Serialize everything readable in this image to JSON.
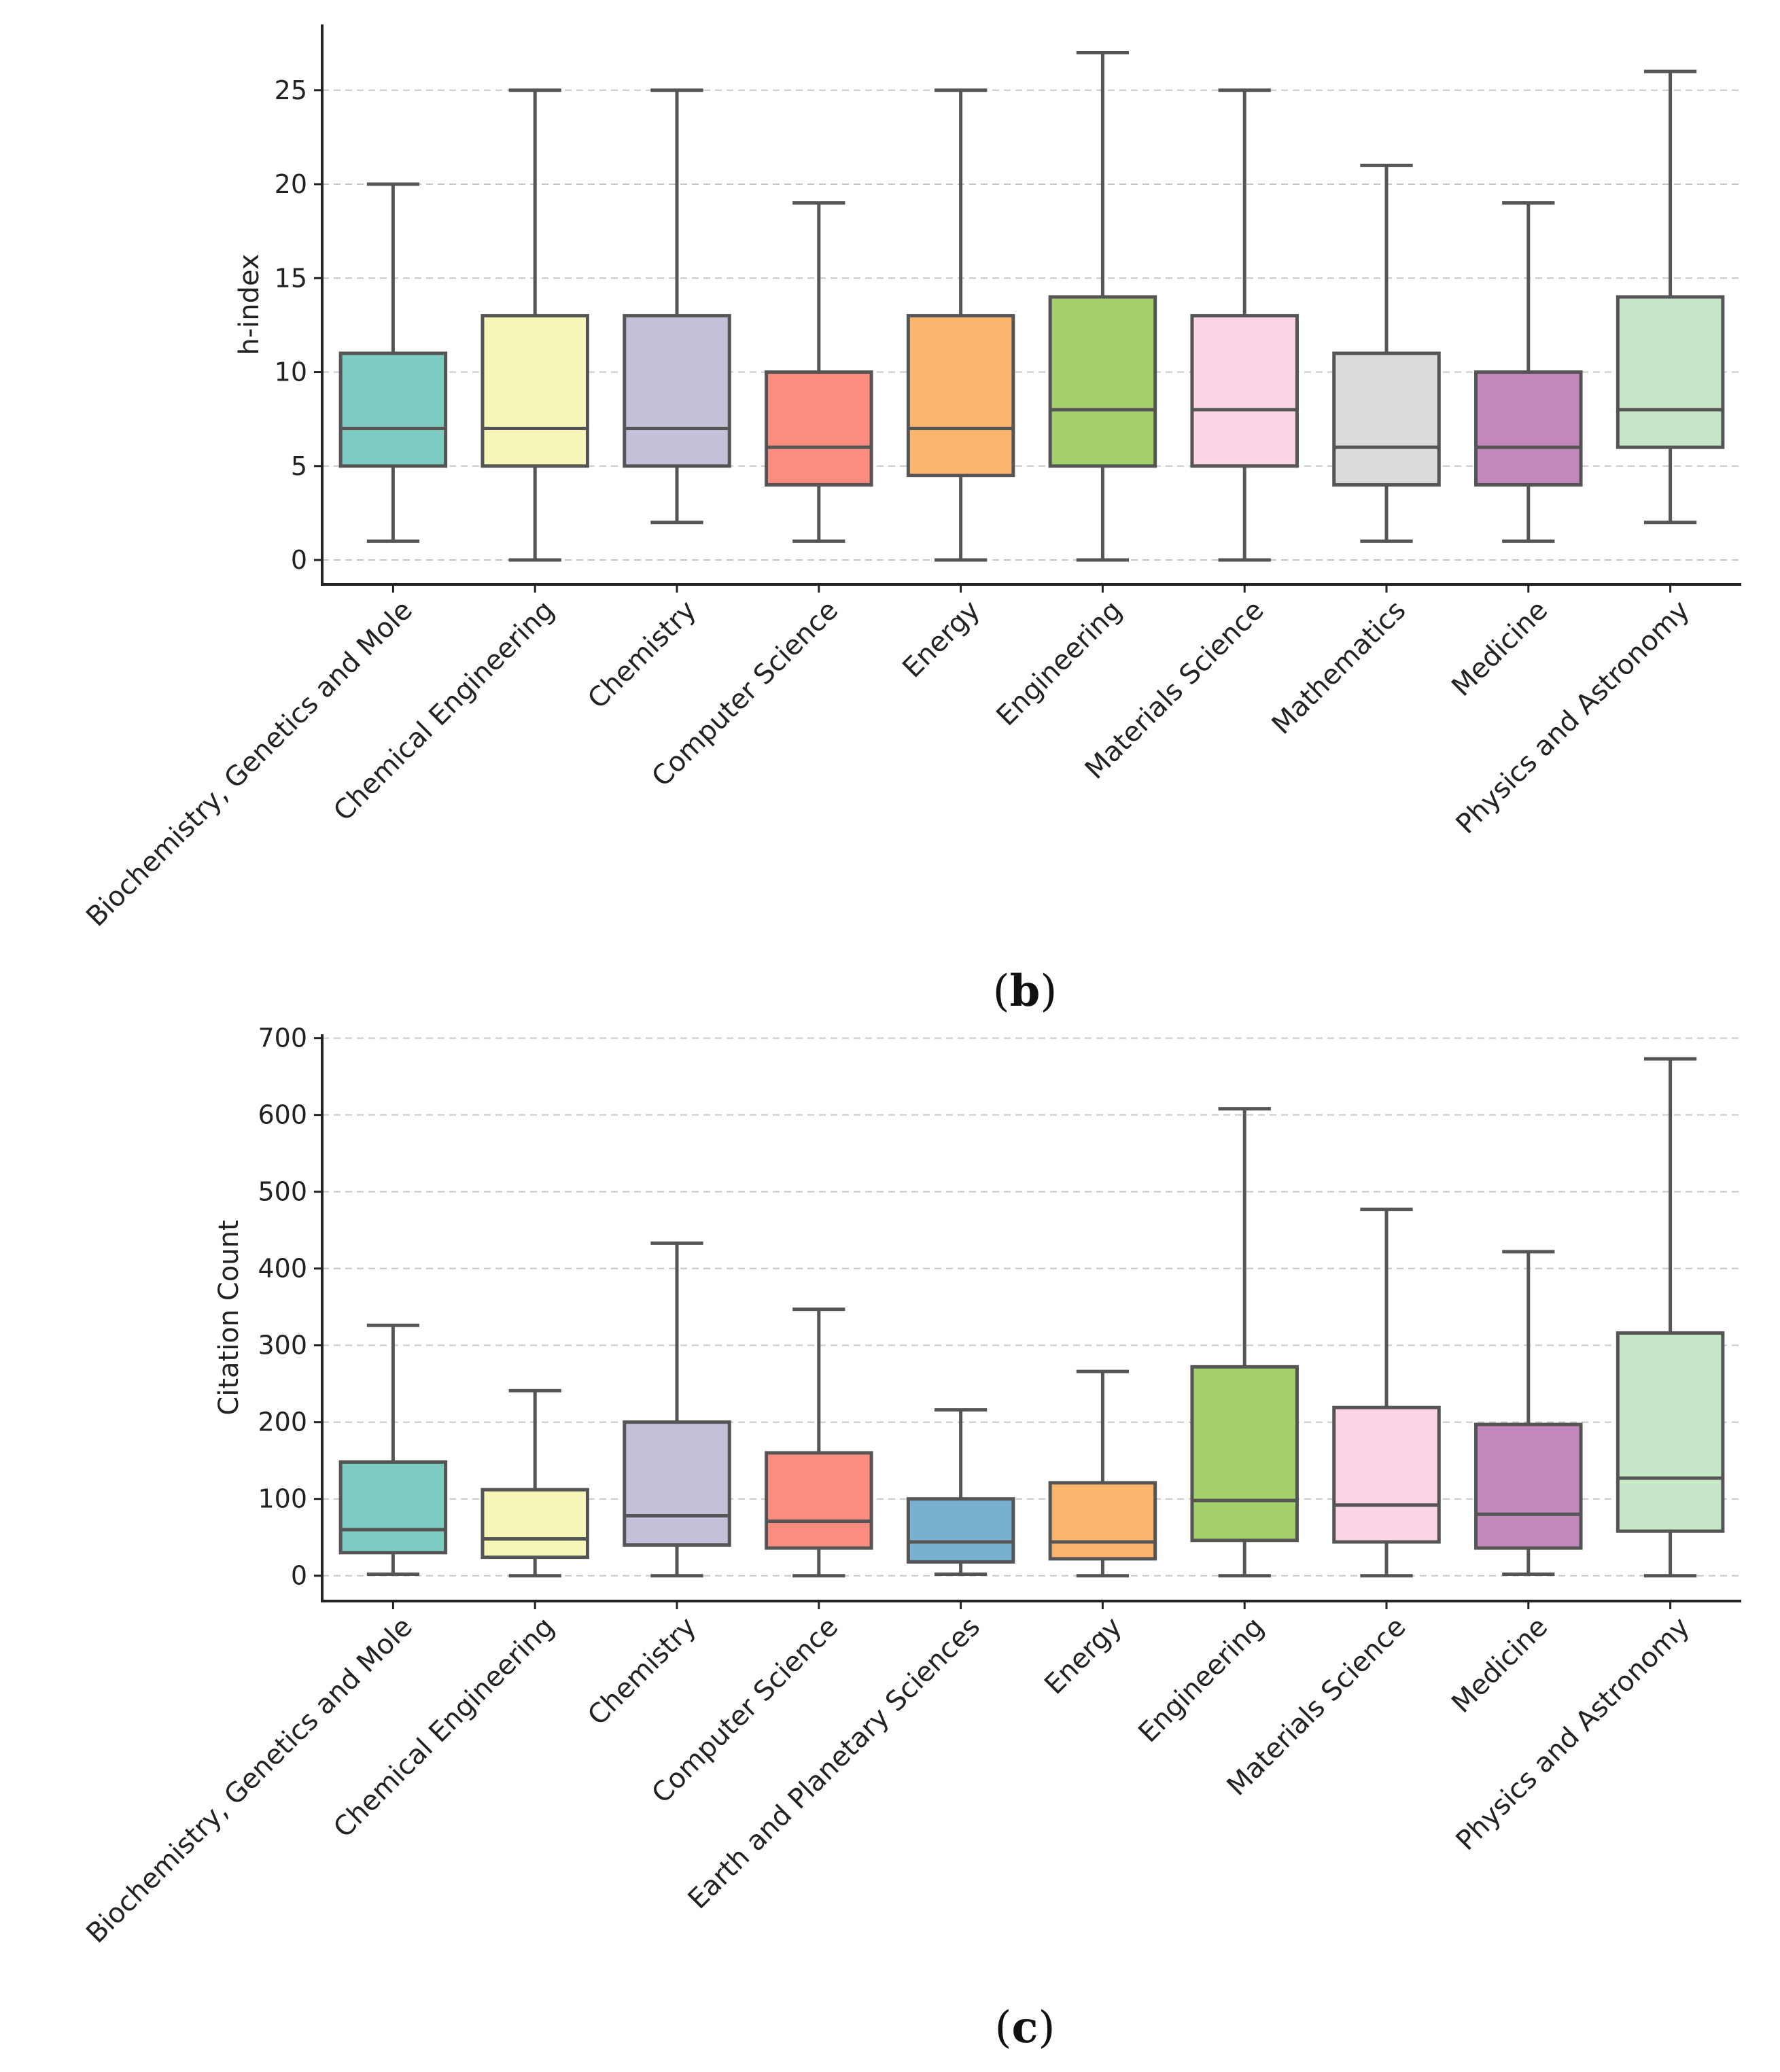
{
  "chart_data": [
    {
      "type": "box",
      "panel": "b",
      "caption": {
        "open": "(",
        "letter": "b",
        "close": ")"
      },
      "ylabel": "h-index",
      "ylim": [
        -1.3,
        28.5
      ],
      "yticks": [
        0,
        5,
        10,
        15,
        20,
        25
      ],
      "grid": true,
      "categories": [
        "Biochemistry, Genetics and Mole",
        "Chemical Engineering",
        "Chemistry",
        "Computer Science",
        "Energy",
        "Engineering",
        "Materials Science",
        "Mathematics",
        "Medicine",
        "Physics and Astronomy"
      ],
      "colors": [
        "#7ecbc1",
        "#f6f6b8",
        "#c4c0da",
        "#fb8c80",
        "#fbb46c",
        "#a4d06e",
        "#fcd4e6",
        "#dcdcdc",
        "#c288bb",
        "#c7e8c8"
      ],
      "boxes": [
        {
          "whislo": 1,
          "q1": 5,
          "med": 7,
          "q3": 11,
          "whishi": 20
        },
        {
          "whislo": 0,
          "q1": 5,
          "med": 7,
          "q3": 13,
          "whishi": 25
        },
        {
          "whislo": 2,
          "q1": 5,
          "med": 7,
          "q3": 13,
          "whishi": 25
        },
        {
          "whislo": 1,
          "q1": 4,
          "med": 6,
          "q3": 10,
          "whishi": 19
        },
        {
          "whislo": 0,
          "q1": 4.5,
          "med": 7,
          "q3": 13,
          "whishi": 25
        },
        {
          "whislo": 0,
          "q1": 5,
          "med": 8,
          "q3": 14,
          "whishi": 27
        },
        {
          "whislo": 0,
          "q1": 5,
          "med": 8,
          "q3": 13,
          "whishi": 25
        },
        {
          "whislo": 1,
          "q1": 4,
          "med": 6,
          "q3": 11,
          "whishi": 21
        },
        {
          "whislo": 1,
          "q1": 4,
          "med": 6,
          "q3": 10,
          "whishi": 19
        },
        {
          "whislo": 2,
          "q1": 6,
          "med": 8,
          "q3": 14,
          "whishi": 26
        }
      ]
    },
    {
      "type": "box",
      "panel": "c",
      "caption": {
        "open": "(",
        "letter": "c",
        "close": ")"
      },
      "ylabel": "Citation Count",
      "ylim": [
        -33,
        705
      ],
      "yticks": [
        0,
        100,
        200,
        300,
        400,
        500,
        600,
        700
      ],
      "grid": true,
      "categories": [
        "Biochemistry, Genetics and Mole",
        "Chemical Engineering",
        "Chemistry",
        "Computer Science",
        "Earth and Planetary Sciences",
        "Energy",
        "Engineering",
        "Materials Science",
        "Medicine",
        "Physics and Astronomy"
      ],
      "colors": [
        "#7ecbc1",
        "#f6f6b8",
        "#c4c0da",
        "#fb8c80",
        "#78b0d0",
        "#fbb46c",
        "#a4d06e",
        "#fcd4e6",
        "#c288bb",
        "#c7e8c8"
      ],
      "boxes": [
        {
          "whislo": 2,
          "q1": 30,
          "med": 60,
          "q3": 148,
          "whishi": 326
        },
        {
          "whislo": 0,
          "q1": 24,
          "med": 48,
          "q3": 112,
          "whishi": 241
        },
        {
          "whislo": 0,
          "q1": 40,
          "med": 78,
          "q3": 200,
          "whishi": 433
        },
        {
          "whislo": 0,
          "q1": 36,
          "med": 71,
          "q3": 160,
          "whishi": 347
        },
        {
          "whislo": 2,
          "q1": 18,
          "med": 44,
          "q3": 100,
          "whishi": 216
        },
        {
          "whislo": 0,
          "q1": 22,
          "med": 44,
          "q3": 121,
          "whishi": 266
        },
        {
          "whislo": 0,
          "q1": 46,
          "med": 98,
          "q3": 272,
          "whishi": 608
        },
        {
          "whislo": 0,
          "q1": 44,
          "med": 92,
          "q3": 219,
          "whishi": 477
        },
        {
          "whislo": 2,
          "q1": 36,
          "med": 80,
          "q3": 197,
          "whishi": 422
        },
        {
          "whislo": 0,
          "q1": 58,
          "med": 127,
          "q3": 316,
          "whishi": 673
        }
      ]
    }
  ]
}
